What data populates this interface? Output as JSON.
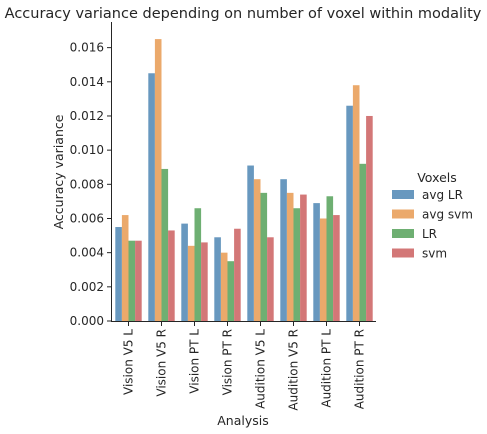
{
  "chart_data": {
    "type": "bar",
    "title": "Accuracy variance depending on number of voxel within modality",
    "xlabel": "Analysis",
    "ylabel": "Accuracy variance",
    "ylim": [
      0,
      0.0175
    ],
    "yticks": [
      "0.000",
      "0.002",
      "0.004",
      "0.006",
      "0.008",
      "0.010",
      "0.012",
      "0.014",
      "0.016"
    ],
    "categories": [
      "Vision V5 L",
      "Vision V5 R",
      "Vision PT L",
      "Vision PT R",
      "Audition V5 L",
      "Audition V5 R",
      "Audition PT L",
      "Audition PT R"
    ],
    "series": [
      {
        "name": "avg LR",
        "color": "#5b8fba",
        "values": [
          0.0055,
          0.0145,
          0.0057,
          0.0049,
          0.0091,
          0.0083,
          0.0069,
          0.0126
        ]
      },
      {
        "name": "avg svm",
        "color": "#e9a25e",
        "values": [
          0.0062,
          0.0165,
          0.0044,
          0.004,
          0.0083,
          0.0075,
          0.006,
          0.0138
        ]
      },
      {
        "name": "LR",
        "color": "#62a866",
        "values": [
          0.0047,
          0.0089,
          0.0066,
          0.0035,
          0.0075,
          0.0066,
          0.0073,
          0.0092
        ]
      },
      {
        "name": "svm",
        "color": "#cf6b6b",
        "values": [
          0.0047,
          0.0053,
          0.0046,
          0.0054,
          0.0049,
          0.0074,
          0.0062,
          0.012
        ]
      }
    ],
    "legend": {
      "title": "Voxels",
      "position": "right"
    },
    "grid": false
  }
}
